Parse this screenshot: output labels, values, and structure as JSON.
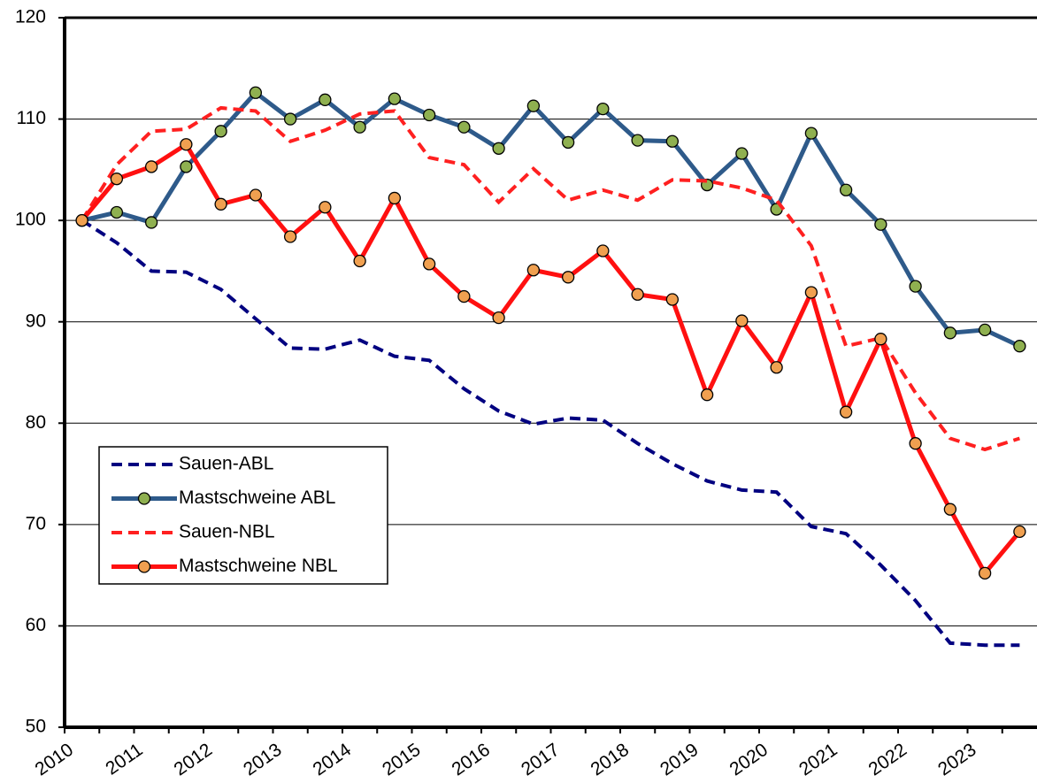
{
  "chart_data": {
    "type": "line",
    "categories": [
      "2010",
      null,
      "2011",
      null,
      "2012",
      null,
      "2013",
      null,
      "2014",
      null,
      "2015",
      null,
      "2016",
      null,
      "2017",
      null,
      "2018",
      null,
      "2019",
      null,
      "2020",
      null,
      "2021",
      null,
      "2022",
      null,
      "2023",
      null
    ],
    "series": [
      {
        "name": "Sauen-ABL",
        "color": "#000080",
        "style": "dashed",
        "markers": false,
        "values": [
          100,
          97.8,
          95,
          94.9,
          93.2,
          90.3,
          87.4,
          87.3,
          88.2,
          86.6,
          86.2,
          83.4,
          81.2,
          79.9,
          80.5,
          80.3,
          78,
          76,
          74.3,
          73.4,
          73.2,
          69.8,
          69.1,
          66,
          62.5,
          58.3,
          58.1,
          58.1
        ]
      },
      {
        "name": "Mastschweine ABL",
        "color": "#2e5a8a",
        "marker_color": "#8fb050",
        "style": "solid",
        "markers": true,
        "values": [
          100,
          100.8,
          99.8,
          105.3,
          108.8,
          112.6,
          110,
          111.9,
          109.2,
          112,
          110.4,
          109.2,
          107.1,
          111.3,
          107.7,
          111,
          107.9,
          107.8,
          103.5,
          106.6,
          101.1,
          108.6,
          103,
          99.6,
          93.5,
          88.9,
          89.2,
          87.6
        ]
      },
      {
        "name": "Sauen-NBL",
        "color": "#ff2020",
        "style": "dashed",
        "markers": false,
        "values": [
          100,
          105.5,
          108.8,
          109,
          111.1,
          110.8,
          107.8,
          108.9,
          110.5,
          110.8,
          106.2,
          105.5,
          101.8,
          105.1,
          102,
          103,
          102,
          104,
          103.9,
          103.2,
          102,
          97.5,
          87.6,
          88.4,
          83,
          78.5,
          77.4,
          78.5
        ]
      },
      {
        "name": "Mastschweine NBL",
        "color": "#ff1010",
        "marker_color": "#f0a050",
        "style": "solid",
        "markers": true,
        "values": [
          100,
          104.1,
          105.3,
          107.5,
          101.6,
          102.5,
          98.4,
          101.3,
          96,
          102.2,
          95.7,
          92.5,
          90.4,
          95.1,
          94.4,
          97,
          92.7,
          92.2,
          82.8,
          90.1,
          85.5,
          92.9,
          81.1,
          88.3,
          78,
          71.5,
          65.2,
          69.3
        ]
      }
    ],
    "ylim": [
      50,
      120
    ],
    "yticks": [
      50,
      60,
      70,
      80,
      90,
      100,
      110,
      120
    ],
    "grid": true,
    "legend": "lower-left"
  }
}
